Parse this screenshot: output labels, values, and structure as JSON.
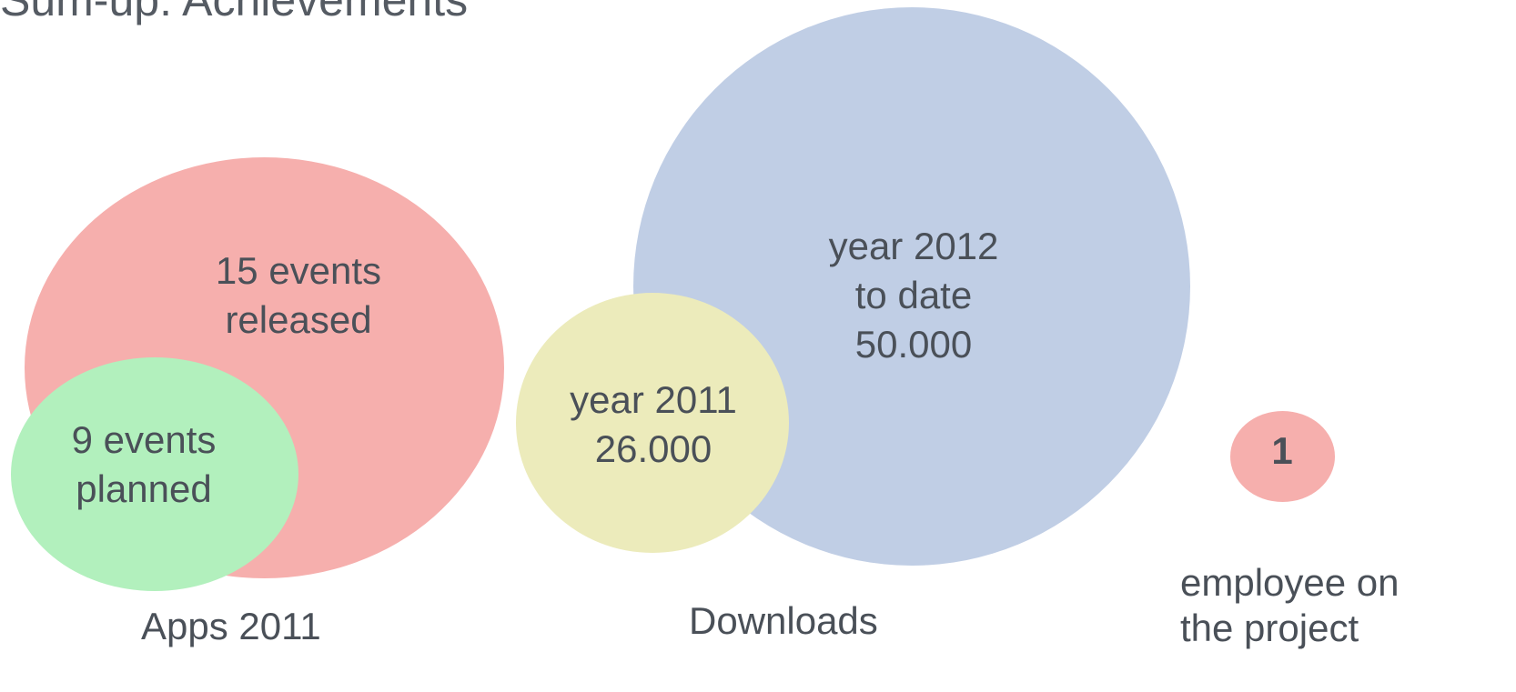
{
  "title": "Sum-up: Achievements",
  "colors": {
    "apps_2011": "#f6afad",
    "planned": "#b2f0bd",
    "downloads_2012": "#c0cee5",
    "downloads_2011": "#ecebbb",
    "employee": "#f6afad",
    "text": "#4a5058"
  },
  "apps": {
    "released_line1": "15 events",
    "released_line2": "released",
    "planned_line1": "9 events",
    "planned_line2": "planned",
    "caption": "Apps 2011"
  },
  "downloads": {
    "y2012_line1": "year 2012",
    "y2012_line2": "to date",
    "y2012_line3": "50.000",
    "y2011_line1": "year 2011",
    "y2011_line2": "26.000",
    "caption": "Downloads"
  },
  "team": {
    "count": "1",
    "caption_line1": "employee on",
    "caption_line2": "the project"
  }
}
